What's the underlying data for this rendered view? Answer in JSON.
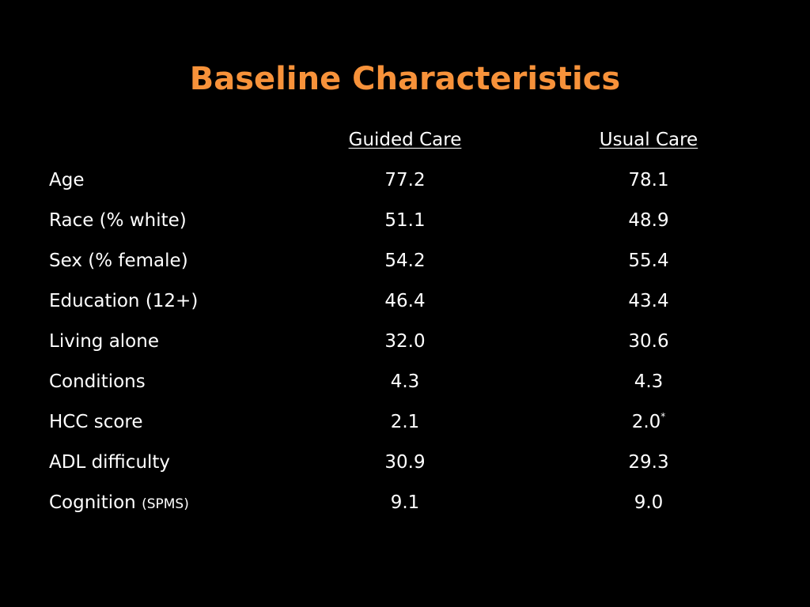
{
  "slide": {
    "title": "Baseline Characteristics",
    "accent_color": "#f7923a",
    "background_color": "#000000"
  },
  "table": {
    "columns": [
      "",
      "Guided Care",
      "Usual Care"
    ],
    "rows": [
      {
        "label": "Age",
        "label_note": "",
        "guided": "77.2",
        "usual": "78.1",
        "usual_mark": ""
      },
      {
        "label": "Race (% white)",
        "label_note": "",
        "guided": "51.1",
        "usual": "48.9",
        "usual_mark": ""
      },
      {
        "label": "Sex (% female)",
        "label_note": "",
        "guided": "54.2",
        "usual": "55.4",
        "usual_mark": ""
      },
      {
        "label": "Education (12+)",
        "label_note": "",
        "guided": "46.4",
        "usual": "43.4",
        "usual_mark": ""
      },
      {
        "label": "Living alone",
        "label_note": "",
        "guided": "32.0",
        "usual": "30.6",
        "usual_mark": ""
      },
      {
        "label": "Conditions",
        "label_note": "",
        "guided": "4.3",
        "usual": "4.3",
        "usual_mark": ""
      },
      {
        "label": "HCC score",
        "label_note": "",
        "guided": "2.1",
        "usual": "2.0",
        "usual_mark": "*"
      },
      {
        "label": "ADL difficulty",
        "label_note": "",
        "guided": "30.9",
        "usual": "29.3",
        "usual_mark": ""
      },
      {
        "label": "Cognition",
        "label_note": "(SPMS)",
        "guided": "9.1",
        "usual": "9.0",
        "usual_mark": ""
      }
    ]
  }
}
